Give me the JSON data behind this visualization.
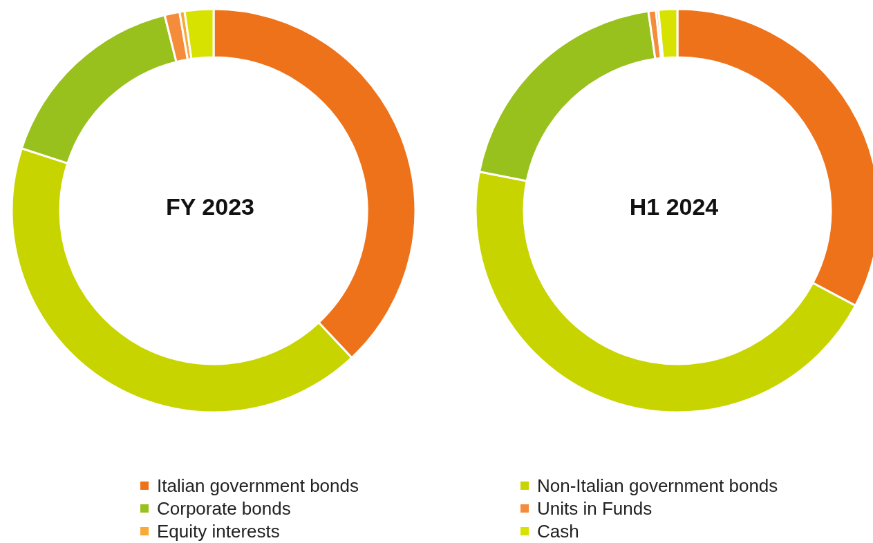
{
  "chart_data": {
    "type": "donut",
    "categories": [
      "Italian government bonds",
      "Non-Italian government bonds",
      "Corporate bonds",
      "Units in Funds",
      "Equity interests",
      "Cash"
    ],
    "colors": [
      "#ee7219",
      "#c8d400",
      "#98c11d",
      "#f58c3c",
      "#f9a938",
      "#d7e200"
    ],
    "legend": "bottom",
    "series": [
      {
        "name": "FY 2023",
        "values": [
          38.0,
          42.0,
          16.1,
          1.2,
          0.4,
          2.3
        ]
      },
      {
        "name": "H1 2024",
        "values": [
          32.8,
          45.3,
          19.6,
          0.6,
          0.2,
          1.5
        ]
      }
    ]
  }
}
